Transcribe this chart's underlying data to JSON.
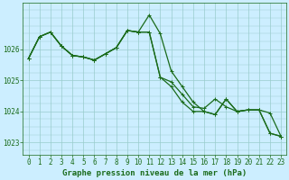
{
  "background_color": "#cceeff",
  "grid_color": "#99cccc",
  "line_color": "#1a6b1a",
  "xlabel": "Graphe pression niveau de la mer (hPa)",
  "xlabel_fontsize": 6.5,
  "ylabel_ticks": [
    1023,
    1024,
    1025,
    1026
  ],
  "xlim": [
    -0.5,
    23.5
  ],
  "ylim": [
    1022.6,
    1027.5
  ],
  "series": [
    [
      1025.7,
      1026.4,
      1026.55,
      1026.1,
      1025.8,
      1025.75,
      1025.65,
      1025.85,
      1026.05,
      1026.6,
      1026.55,
      1027.1,
      1026.5,
      1025.3,
      1024.8,
      1024.3,
      1024.0,
      1023.9,
      1024.4,
      1024.0,
      1024.05,
      1024.05,
      1023.3,
      1023.2
    ],
    [
      1025.7,
      1026.4,
      1026.55,
      1026.1,
      1025.8,
      1025.75,
      1025.65,
      1025.85,
      1026.05,
      1026.6,
      1026.55,
      1026.55,
      1025.1,
      1024.8,
      1024.3,
      1024.0,
      1024.0,
      1023.9,
      1024.4,
      1024.0,
      1024.05,
      1024.05,
      1023.3,
      1023.2
    ],
    [
      1025.7,
      1026.4,
      1026.55,
      1026.1,
      1025.8,
      1025.75,
      1025.65,
      1025.85,
      1026.05,
      1026.6,
      1026.55,
      1026.55,
      1025.1,
      1024.95,
      1024.55,
      1024.15,
      1024.1,
      1024.4,
      1024.15,
      1024.0,
      1024.05,
      1024.05,
      1023.95,
      1023.2
    ]
  ],
  "tick_fontsize": 5.5,
  "marker_size": 2.5,
  "line_width": 0.9
}
